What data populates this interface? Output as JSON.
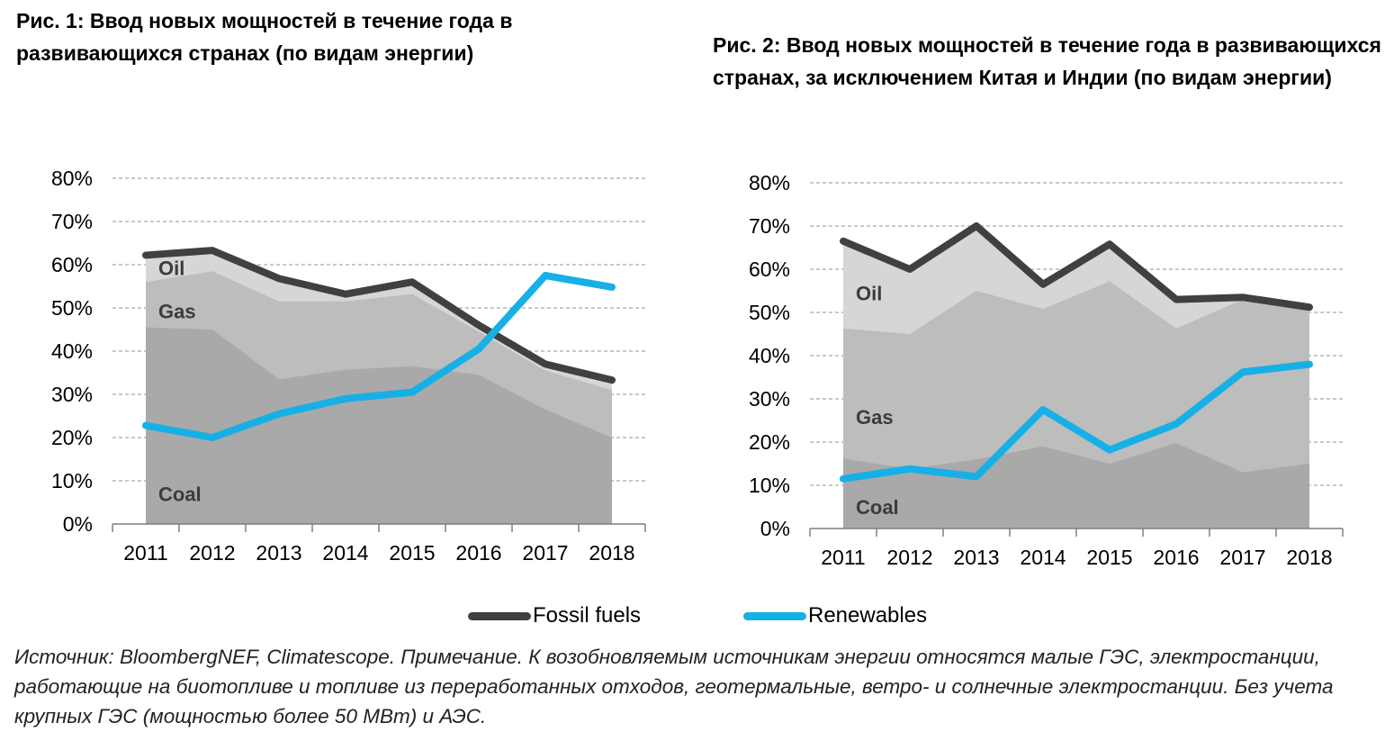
{
  "figure1": {
    "title": "Рис. 1: Ввод новых мощностей в течение года в развивающихся странах (по видам энергии)"
  },
  "figure2": {
    "title": "Рис. 2: Ввод новых мощностей в течение года в развивающихся странах, за исключением Китая и Индии (по видам энергии)"
  },
  "legend": {
    "fossil": "Fossil fuels",
    "renewables": "Renewables"
  },
  "footnote": "Источник: BloombergNEF, Climatescope. Примечание. К возобновляемым источникам энергии относятся малые ГЭС, электростанции, работающие на биотопливе и топливе из переработанных отходов, геотермальные, ветро- и солнечные электростанции. Без учета крупных ГЭС (мощностью более 50 МВт) и АЭС.",
  "colors": {
    "fossil": "#404040",
    "renewables": "#16b0e6",
    "coal": "#a9a9a9",
    "gas": "#bdbdbd",
    "oil": "#d6d6d6",
    "grid": "#a6a6a6"
  },
  "chart_data": [
    {
      "type": "area",
      "x": [
        "2011",
        "2012",
        "2013",
        "2014",
        "2015",
        "2016",
        "2017",
        "2018"
      ],
      "y_ticks": [
        "0%",
        "10%",
        "20%",
        "30%",
        "40%",
        "50%",
        "60%",
        "70%",
        "80%"
      ],
      "ylim": [
        0,
        80
      ],
      "grid": true,
      "areas": [
        {
          "name": "Coal",
          "values": [
            45.5,
            45,
            33.5,
            35.7,
            36.5,
            34.5,
            26.5,
            20
          ]
        },
        {
          "name": "Gas",
          "values": [
            56,
            58.5,
            51.5,
            51.5,
            53.2,
            44.5,
            35.5,
            31
          ]
        },
        {
          "name": "Oil",
          "values": [
            62.2,
            63.3,
            56.8,
            53.2,
            56,
            46,
            37,
            33.3
          ]
        }
      ],
      "series": [
        {
          "name": "Fossil fuels",
          "values": [
            62.2,
            63.3,
            56.8,
            53.2,
            56,
            46,
            37,
            33.3
          ]
        },
        {
          "name": "Renewables",
          "values": [
            22.8,
            20,
            25.5,
            29,
            30.5,
            40.5,
            57.5,
            54.8
          ]
        }
      ]
    },
    {
      "type": "area",
      "x": [
        "2011",
        "2012",
        "2013",
        "2014",
        "2015",
        "2016",
        "2017",
        "2018"
      ],
      "y_ticks": [
        "0%",
        "10%",
        "20%",
        "30%",
        "40%",
        "50%",
        "60%",
        "70%",
        "80%"
      ],
      "ylim": [
        0,
        80
      ],
      "grid": true,
      "areas": [
        {
          "name": "Coal",
          "values": [
            16.2,
            13.8,
            16,
            19,
            15,
            19.8,
            13,
            15
          ]
        },
        {
          "name": "Gas",
          "values": [
            46.3,
            45,
            55,
            50.8,
            57.2,
            46.3,
            53,
            51.2
          ]
        },
        {
          "name": "Oil",
          "values": [
            66.5,
            60,
            70,
            56.5,
            65.8,
            53,
            53.5,
            51.2
          ]
        }
      ],
      "series": [
        {
          "name": "Fossil fuels",
          "values": [
            66.5,
            60,
            70,
            56.5,
            65.8,
            53,
            53.5,
            51.2
          ]
        },
        {
          "name": "Renewables",
          "values": [
            11.5,
            13.8,
            12,
            27.5,
            18.2,
            24.2,
            36.2,
            38
          ]
        }
      ]
    }
  ]
}
